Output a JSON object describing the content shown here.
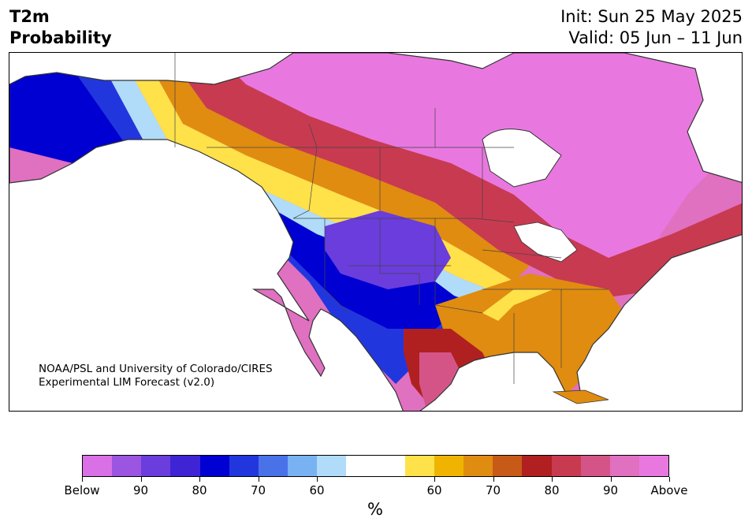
{
  "header": {
    "title_line1": "T2m",
    "title_line2": "Probability",
    "init": "Init: Sun 25 May 2025",
    "valid": "Valid: 05 Jun – 11 Jun"
  },
  "map": {
    "credit_line1": "NOAA/PSL and University of Colorado/CIRES",
    "credit_line2": "Experimental LIM Forecast (v2.0)",
    "region": "North America",
    "colors": {
      "ocean": "#ffffff",
      "land_outline": "#333333"
    }
  },
  "colorbar": {
    "unit": "%",
    "segments": [
      "#d970e6",
      "#9b55e0",
      "#6a3ddc",
      "#3f24d6",
      "#0000d2",
      "#2236de",
      "#4a72e8",
      "#78b2f2",
      "#b0dcfa",
      "#ffffff",
      "#ffffff",
      "#ffe14a",
      "#f0b400",
      "#e08c10",
      "#c85a18",
      "#b02020",
      "#c83a50",
      "#d55488",
      "#e070c0",
      "#e878e0"
    ],
    "tick_labels": [
      "Below",
      "90",
      "80",
      "70",
      "60",
      "60",
      "70",
      "80",
      "90",
      "Above"
    ]
  }
}
